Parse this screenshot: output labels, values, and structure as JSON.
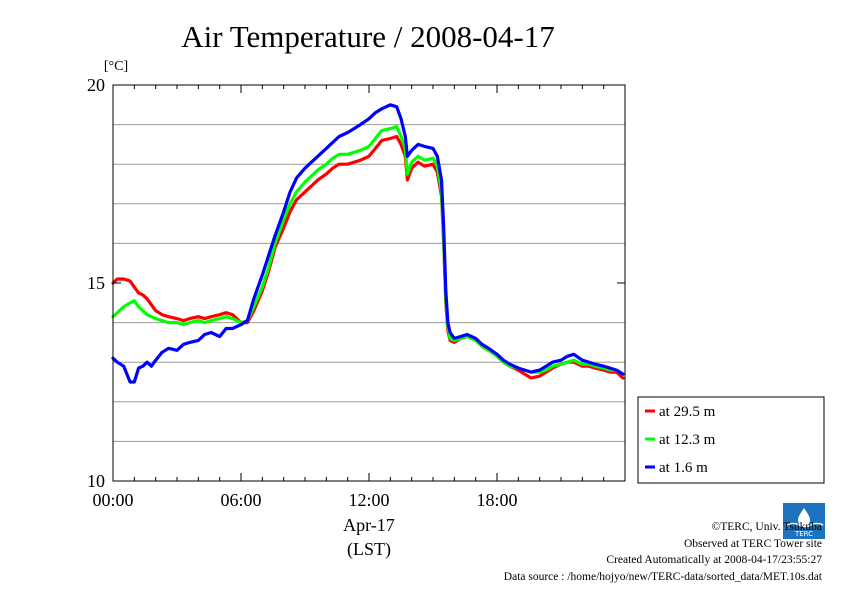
{
  "chart_data": {
    "type": "line",
    "title": "Air Temperature / 2008-04-17",
    "ylabel": "[°C]",
    "xlabel": "Apr-17",
    "xlabel2": "(LST)",
    "xlim": [
      0,
      24
    ],
    "ylim": [
      10,
      20
    ],
    "x_ticks": [
      0,
      6,
      12,
      18
    ],
    "x_tick_labels": [
      "00:00",
      "06:00",
      "12:00",
      "18:00"
    ],
    "y_ticks": [
      10,
      15,
      20
    ],
    "y_tick_labels": [
      "10",
      "15",
      "20"
    ],
    "y_grid": [
      11,
      12,
      13,
      14,
      16,
      17,
      18,
      19
    ],
    "grid": true,
    "legend_position": "bottom-right, outside plot",
    "series": [
      {
        "name": "at 29.5 m",
        "color": "#ff0000",
        "x": [
          0,
          0.2,
          0.5,
          0.8,
          1,
          1.2,
          1.4,
          1.6,
          1.8,
          2,
          2.3,
          2.6,
          3,
          3.3,
          3.6,
          4,
          4.3,
          4.6,
          5,
          5.3,
          5.6,
          6,
          6.3,
          6.6,
          7,
          7.3,
          7.6,
          8,
          8.3,
          8.6,
          9,
          9.3,
          9.6,
          10,
          10.3,
          10.6,
          11,
          11.3,
          11.6,
          12,
          12.3,
          12.6,
          13,
          13.3,
          13.5,
          13.7,
          13.8,
          14,
          14.3,
          14.6,
          15,
          15.2,
          15.4,
          15.5,
          15.6,
          15.7,
          15.8,
          16,
          16.3,
          16.6,
          17,
          17.3,
          17.6,
          18,
          18.3,
          18.6,
          19,
          19.3,
          19.6,
          20,
          20.3,
          20.6,
          21,
          21.3,
          21.6,
          22,
          22.3,
          22.6,
          23,
          23.3,
          23.6,
          23.9
        ],
        "values": [
          15.0,
          15.1,
          15.1,
          15.05,
          14.9,
          14.75,
          14.7,
          14.6,
          14.45,
          14.3,
          14.2,
          14.15,
          14.1,
          14.05,
          14.1,
          14.15,
          14.1,
          14.15,
          14.2,
          14.25,
          14.2,
          14.0,
          14.0,
          14.3,
          14.8,
          15.3,
          15.9,
          16.4,
          16.8,
          17.1,
          17.3,
          17.45,
          17.6,
          17.75,
          17.9,
          18.0,
          18.0,
          18.05,
          18.1,
          18.2,
          18.4,
          18.6,
          18.65,
          18.7,
          18.5,
          18.2,
          17.6,
          17.9,
          18.05,
          17.95,
          18.0,
          17.8,
          17.2,
          16.0,
          14.5,
          13.8,
          13.55,
          13.5,
          13.6,
          13.65,
          13.6,
          13.4,
          13.3,
          13.2,
          13.0,
          12.9,
          12.8,
          12.7,
          12.6,
          12.65,
          12.75,
          12.85,
          12.95,
          13.0,
          13.0,
          12.9,
          12.9,
          12.85,
          12.8,
          12.75,
          12.75,
          12.6
        ]
      },
      {
        "name": "at 12.3 m",
        "color": "#00ff00",
        "x": [
          0,
          0.2,
          0.5,
          0.8,
          1,
          1.2,
          1.4,
          1.6,
          1.8,
          2,
          2.3,
          2.6,
          3,
          3.3,
          3.6,
          4,
          4.3,
          4.6,
          5,
          5.3,
          5.6,
          6,
          6.3,
          6.6,
          7,
          7.3,
          7.6,
          8,
          8.3,
          8.6,
          9,
          9.3,
          9.6,
          10,
          10.3,
          10.6,
          11,
          11.3,
          11.6,
          12,
          12.3,
          12.6,
          13,
          13.3,
          13.5,
          13.7,
          13.8,
          14,
          14.3,
          14.6,
          15,
          15.2,
          15.4,
          15.5,
          15.6,
          15.7,
          15.8,
          16,
          16.3,
          16.6,
          17,
          17.3,
          17.6,
          18,
          18.3,
          18.6,
          19,
          19.3,
          19.6,
          20,
          20.3,
          20.6,
          21,
          21.3,
          21.6,
          22,
          22.3,
          22.6,
          23,
          23.3,
          23.6,
          23.9
        ],
        "values": [
          14.15,
          14.25,
          14.4,
          14.5,
          14.55,
          14.4,
          14.3,
          14.2,
          14.15,
          14.1,
          14.05,
          14.0,
          14.0,
          13.95,
          14.0,
          14.05,
          14.0,
          14.05,
          14.1,
          14.15,
          14.1,
          14.0,
          14.05,
          14.4,
          14.9,
          15.4,
          16.0,
          16.6,
          17.0,
          17.3,
          17.55,
          17.7,
          17.85,
          18.0,
          18.15,
          18.25,
          18.25,
          18.3,
          18.35,
          18.45,
          18.65,
          18.85,
          18.9,
          18.95,
          18.7,
          18.4,
          17.75,
          18.05,
          18.2,
          18.1,
          18.15,
          17.95,
          17.3,
          16.1,
          14.6,
          13.9,
          13.6,
          13.55,
          13.6,
          13.65,
          13.55,
          13.4,
          13.3,
          13.15,
          13.0,
          12.9,
          12.85,
          12.8,
          12.75,
          12.75,
          12.8,
          12.9,
          12.95,
          13.0,
          13.05,
          12.95,
          12.95,
          12.9,
          12.85,
          12.8,
          12.8,
          12.7
        ]
      },
      {
        "name": "at 1.6 m",
        "color": "#0000ff",
        "x": [
          0,
          0.2,
          0.5,
          0.8,
          1,
          1.2,
          1.4,
          1.6,
          1.8,
          2,
          2.3,
          2.6,
          3,
          3.3,
          3.6,
          4,
          4.3,
          4.6,
          5,
          5.3,
          5.6,
          6,
          6.3,
          6.6,
          7,
          7.3,
          7.6,
          8,
          8.3,
          8.6,
          9,
          9.3,
          9.6,
          10,
          10.3,
          10.6,
          11,
          11.3,
          11.6,
          12,
          12.3,
          12.6,
          13,
          13.3,
          13.5,
          13.7,
          13.8,
          14,
          14.3,
          14.6,
          15,
          15.2,
          15.4,
          15.5,
          15.6,
          15.7,
          15.8,
          16,
          16.3,
          16.6,
          17,
          17.3,
          17.6,
          18,
          18.3,
          18.6,
          19,
          19.3,
          19.6,
          20,
          20.3,
          20.6,
          21,
          21.3,
          21.6,
          22,
          22.3,
          22.6,
          23,
          23.3,
          23.6,
          23.9
        ],
        "values": [
          13.1,
          13.0,
          12.9,
          12.5,
          12.5,
          12.85,
          12.9,
          13.0,
          12.9,
          13.05,
          13.25,
          13.35,
          13.3,
          13.45,
          13.5,
          13.55,
          13.7,
          13.75,
          13.65,
          13.85,
          13.85,
          13.95,
          14.05,
          14.6,
          15.2,
          15.7,
          16.2,
          16.8,
          17.3,
          17.65,
          17.9,
          18.05,
          18.2,
          18.4,
          18.55,
          18.7,
          18.8,
          18.9,
          19.0,
          19.15,
          19.3,
          19.4,
          19.5,
          19.45,
          19.15,
          18.7,
          18.2,
          18.35,
          18.5,
          18.45,
          18.4,
          18.2,
          17.6,
          16.4,
          14.8,
          14.0,
          13.75,
          13.6,
          13.65,
          13.7,
          13.6,
          13.45,
          13.35,
          13.2,
          13.05,
          12.95,
          12.85,
          12.8,
          12.75,
          12.8,
          12.9,
          13.0,
          13.05,
          13.15,
          13.2,
          13.05,
          13.0,
          12.95,
          12.9,
          12.85,
          12.8,
          12.7
        ]
      }
    ]
  },
  "credits": {
    "line1": "©TERC, Univ. Tsukuba",
    "line2": "Observed at TERC Tower site",
    "line3": "Created Automatically at 2008-04-17/23:55:27",
    "line4": "Data source : /home/hojyo/new/TERC-data/sorted_data/MET.10s.dat"
  },
  "logo": {
    "text": "TERC"
  }
}
